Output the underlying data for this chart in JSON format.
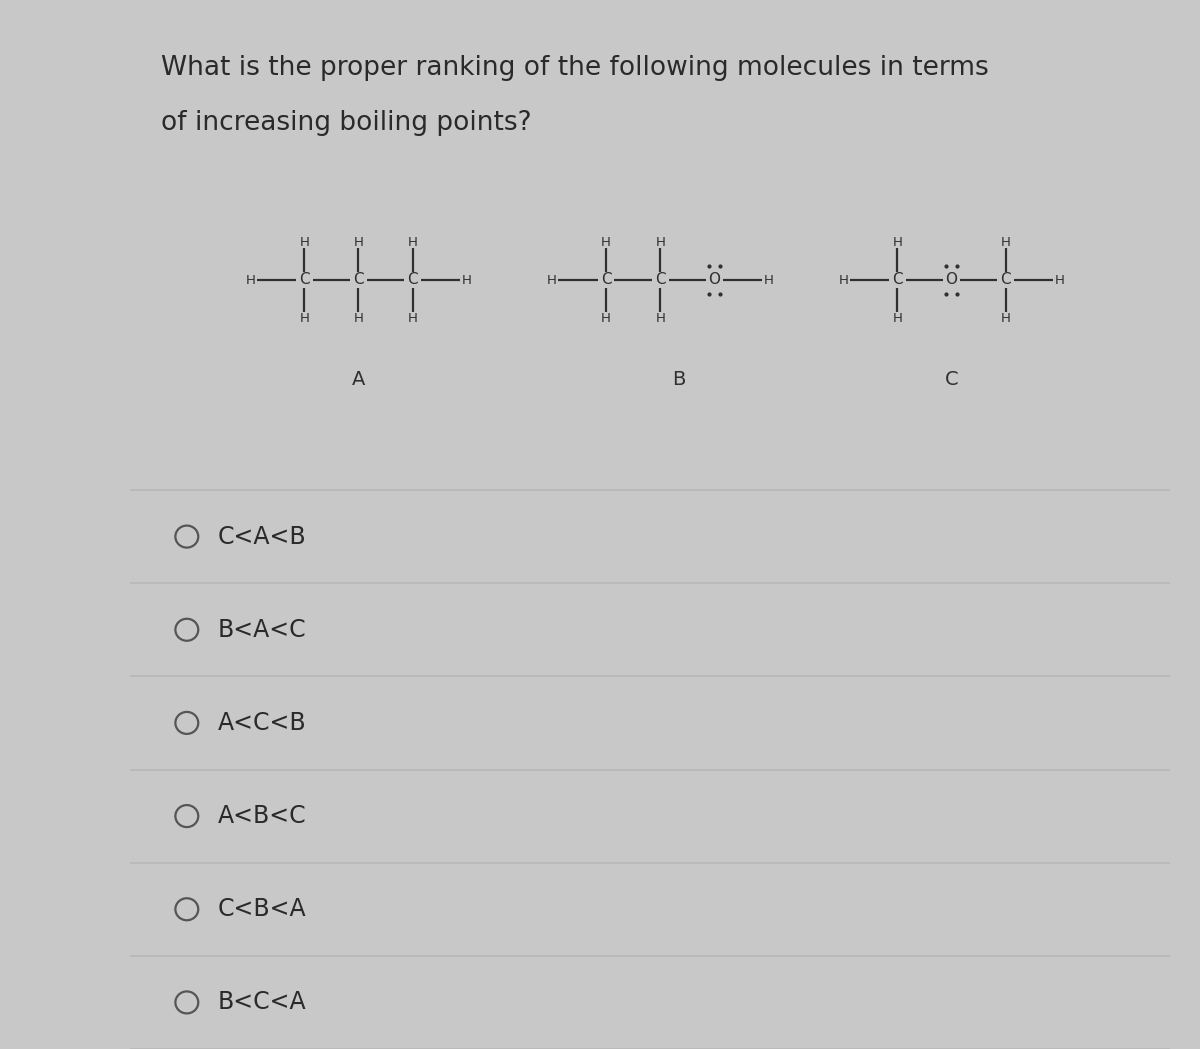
{
  "title_line1": "What is the proper ranking of the following molecules in terms",
  "title_line2": "of increasing boiling points?",
  "title_fontsize": 19,
  "bg_color": "#c8c8c8",
  "panel_color": "#e5e5e5",
  "options": [
    "C<A<B",
    "B<A<C",
    "A<C<B",
    "A<B<C",
    "C<B<A",
    "B<C<A"
  ],
  "options_fontsize": 17,
  "line_color": "#b8b8b8",
  "text_color": "#2a2a2a",
  "mol_text_color": "#303030",
  "mol_line_color": "#303030"
}
